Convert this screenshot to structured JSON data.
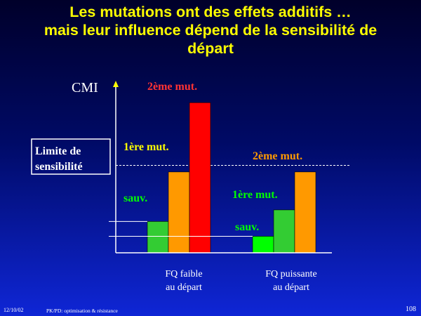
{
  "title": {
    "line1": "Les mutations ont des effets additifs …",
    "line2": "mais leur influence dépend de la sensibilité de",
    "line3": "départ"
  },
  "chart_data": {
    "type": "bar",
    "ylabel": "CMI",
    "threshold_label": [
      "Limite de",
      "sensibilité"
    ],
    "threshold_value": 5.3,
    "ylim": [
      0,
      10
    ],
    "groups": [
      {
        "label": [
          "FQ faible",
          "au départ"
        ],
        "bars": [
          {
            "label": "sauv.",
            "value": 1.9,
            "color": "#33cc33"
          },
          {
            "label": "",
            "value": 4.9,
            "color": "#ff9900"
          },
          {
            "label": "2ème mut.",
            "value": 9.1,
            "color": "#ff0000"
          }
        ]
      },
      {
        "label": [
          "FQ puissante",
          "au départ"
        ],
        "bars": [
          {
            "label": "sauv.",
            "value": 1.0,
            "color": "#00ff00"
          },
          {
            "label": "1ère mut.",
            "value": 2.6,
            "color": "#33cc33"
          },
          {
            "label": "2ème mut.",
            "value": 4.9,
            "color": "#ff9900"
          }
        ]
      }
    ],
    "annotations": [
      {
        "text": "1ère mut.",
        "group": 0
      }
    ]
  },
  "footer": {
    "date": "12/10/02",
    "text": "PK/PD: optimisation & résistance",
    "page": "108"
  }
}
